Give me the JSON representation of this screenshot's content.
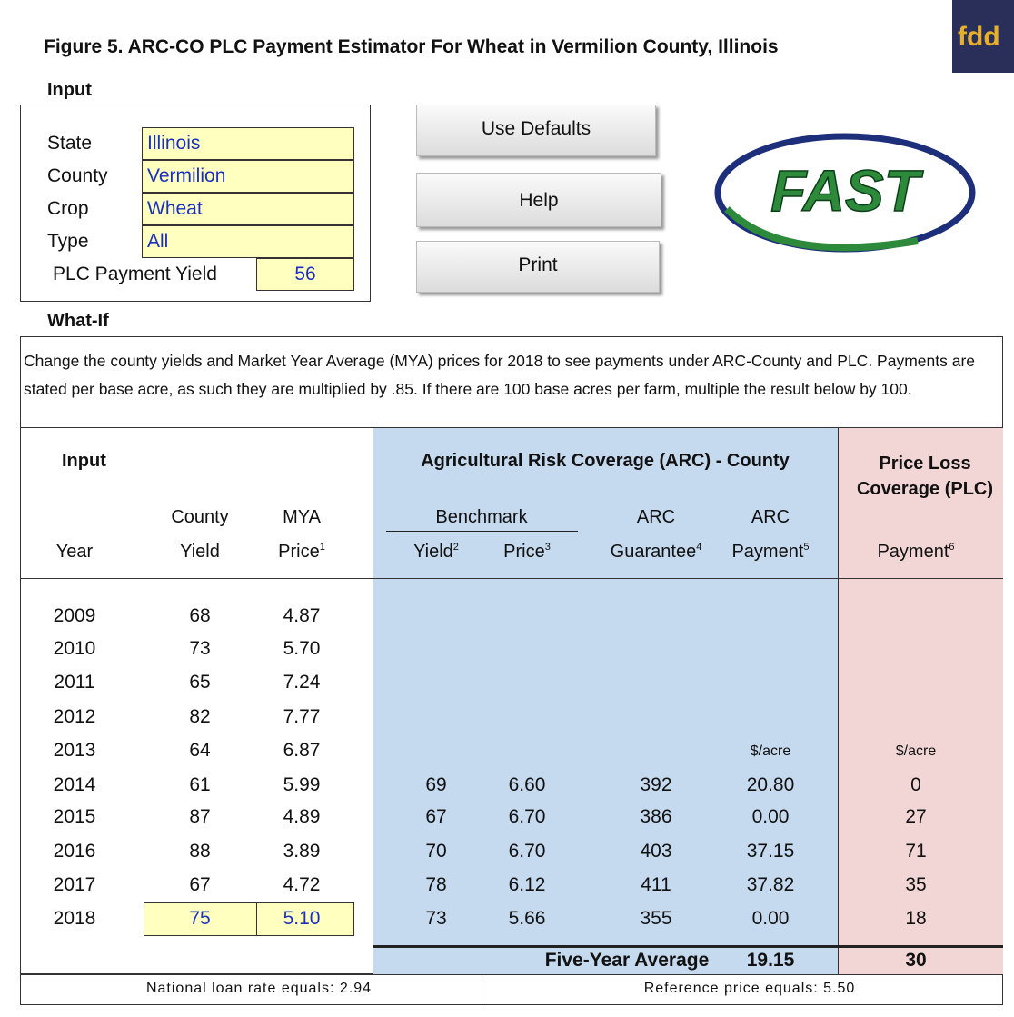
{
  "title": "Figure 5. ARC-CO PLC Payment Estimator For Wheat in Vermilion County, Illinois",
  "brand": "fdd",
  "logo": "FAST",
  "input": {
    "heading": "Input",
    "fields": [
      {
        "label": "State",
        "value": "Illinois"
      },
      {
        "label": "County",
        "value": "Vermilion"
      },
      {
        "label": "Crop",
        "value": "Wheat"
      },
      {
        "label": "Type",
        "value": "All"
      },
      {
        "label": "PLC Payment Yield",
        "value": "56"
      }
    ]
  },
  "buttons": [
    "Use Defaults",
    "Help",
    "Print"
  ],
  "what_if": {
    "heading": "What-If",
    "description": "Change the county yields and Market Year Average (MYA) prices for 2018 to see payments under ARC-County and PLC.  Payments are stated per base acre, as such they are multiplied by .85. If there are 100 base acres per farm, multiple the result below by 100."
  },
  "table": {
    "input_heading": "Input",
    "arc_heading": "Agricultural Risk Coverage (ARC) - County",
    "plc_heading": "Price Loss Coverage (PLC)",
    "benchmark": "Benchmark",
    "columns": [
      {
        "bottom": "Year"
      },
      {
        "top": "County",
        "bottom": "Yield"
      },
      {
        "top": "MYA",
        "bottom": "Price",
        "note": "1"
      },
      {
        "bottom": "Yield",
        "note": "2"
      },
      {
        "bottom": "Price",
        "note": "3"
      },
      {
        "top": "ARC",
        "bottom": "Guarantee",
        "note": "4"
      },
      {
        "top": "ARC",
        "bottom": "Payment",
        "note": "5"
      },
      {
        "bottom": "Payment",
        "note": "6"
      }
    ],
    "rows": [
      [
        "2009",
        "68",
        "4.87"
      ],
      [
        "2010",
        "73",
        "5.70"
      ],
      [
        "2011",
        "65",
        "7.24"
      ],
      [
        "2012",
        "82",
        "7.77"
      ],
      [
        "2013",
        "64",
        "6.87"
      ],
      [
        "2014",
        "61",
        "5.99",
        "69",
        "6.60",
        "392",
        "20.80",
        "0"
      ],
      [
        "2015",
        "87",
        "4.89",
        "67",
        "6.70",
        "386",
        "0.00",
        "27"
      ],
      [
        "2016",
        "88",
        "3.89",
        "70",
        "6.70",
        "403",
        "37.15",
        "71"
      ],
      [
        "2017",
        "67",
        "4.72",
        "78",
        "6.12",
        "411",
        "37.82",
        "35"
      ],
      [
        "2018",
        "75",
        "5.10",
        "73",
        "5.66",
        "355",
        "0.00",
        "18"
      ]
    ],
    "units": {
      "arc_payment": "$/acre",
      "plc_payment": "$/acre"
    },
    "average": {
      "label": "Five-Year Average",
      "arc_payment": "19.15",
      "plc_payment": "30"
    }
  },
  "footer": {
    "loan_rate": "National loan rate equals: 2.94",
    "reference_price": "Reference price equals: 5.50"
  }
}
